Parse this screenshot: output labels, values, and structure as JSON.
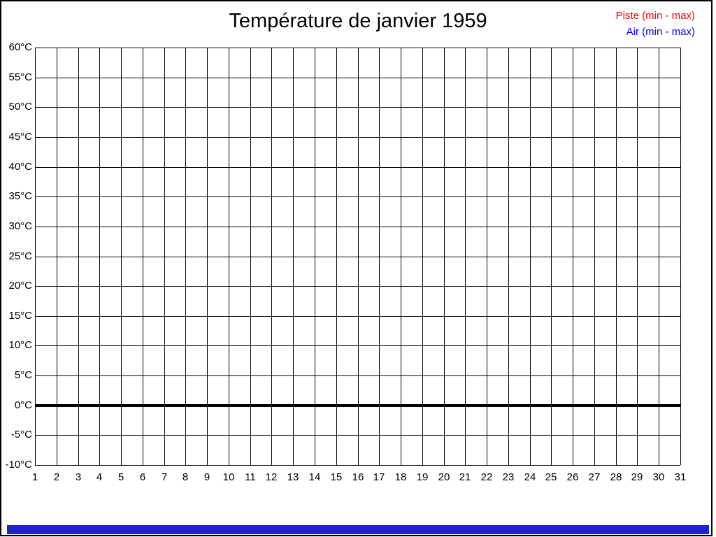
{
  "window": {
    "background": "#FFFFFF",
    "border_color": "#000000"
  },
  "title": "Température de janvier 1959",
  "legend": {
    "items": [
      {
        "label": "Piste (min - max)",
        "color": "#FF0000"
      },
      {
        "label": "Air (min - max)",
        "color": "#0000FF"
      }
    ]
  },
  "bottom_bar": {
    "color": "#2222CC"
  },
  "chart_data": {
    "type": "line",
    "title": "Température de janvier 1959",
    "xlabel": "",
    "ylabel": "",
    "xlim": [
      1,
      31
    ],
    "ylim": [
      -10,
      60
    ],
    "grid": true,
    "grid_color": "#000000",
    "legend_position": "top-right",
    "x_ticks": [
      1,
      2,
      3,
      4,
      5,
      6,
      7,
      8,
      9,
      10,
      11,
      12,
      13,
      14,
      15,
      16,
      17,
      18,
      19,
      20,
      21,
      22,
      23,
      24,
      25,
      26,
      27,
      28,
      29,
      30,
      31
    ],
    "x_tick_labels": [
      "1",
      "2",
      "3",
      "4",
      "5",
      "6",
      "7",
      "8",
      "9",
      "10",
      "11",
      "12",
      "13",
      "14",
      "15",
      "16",
      "17",
      "18",
      "19",
      "20",
      "21",
      "22",
      "23",
      "24",
      "25",
      "26",
      "27",
      "28",
      "29",
      "30",
      "31"
    ],
    "y_ticks": [
      60,
      55,
      50,
      45,
      40,
      35,
      30,
      25,
      20,
      15,
      10,
      5,
      0,
      -5,
      -10
    ],
    "y_tick_labels": [
      "60°C",
      "55°C",
      "50°C",
      "45°C",
      "40°C",
      "35°C",
      "30°C",
      "25°C",
      "20°C",
      "15°C",
      "10°C",
      "5°C",
      "0°C",
      "-5°C",
      "-10°C"
    ],
    "y_tick_unit": "°C",
    "zero_line": {
      "value": 0,
      "color": "#000000",
      "width": 4
    },
    "series": [
      {
        "name": "Piste (min - max)",
        "color": "#FF0000",
        "values": []
      },
      {
        "name": "Air (min - max)",
        "color": "#0000FF",
        "values": []
      }
    ]
  }
}
